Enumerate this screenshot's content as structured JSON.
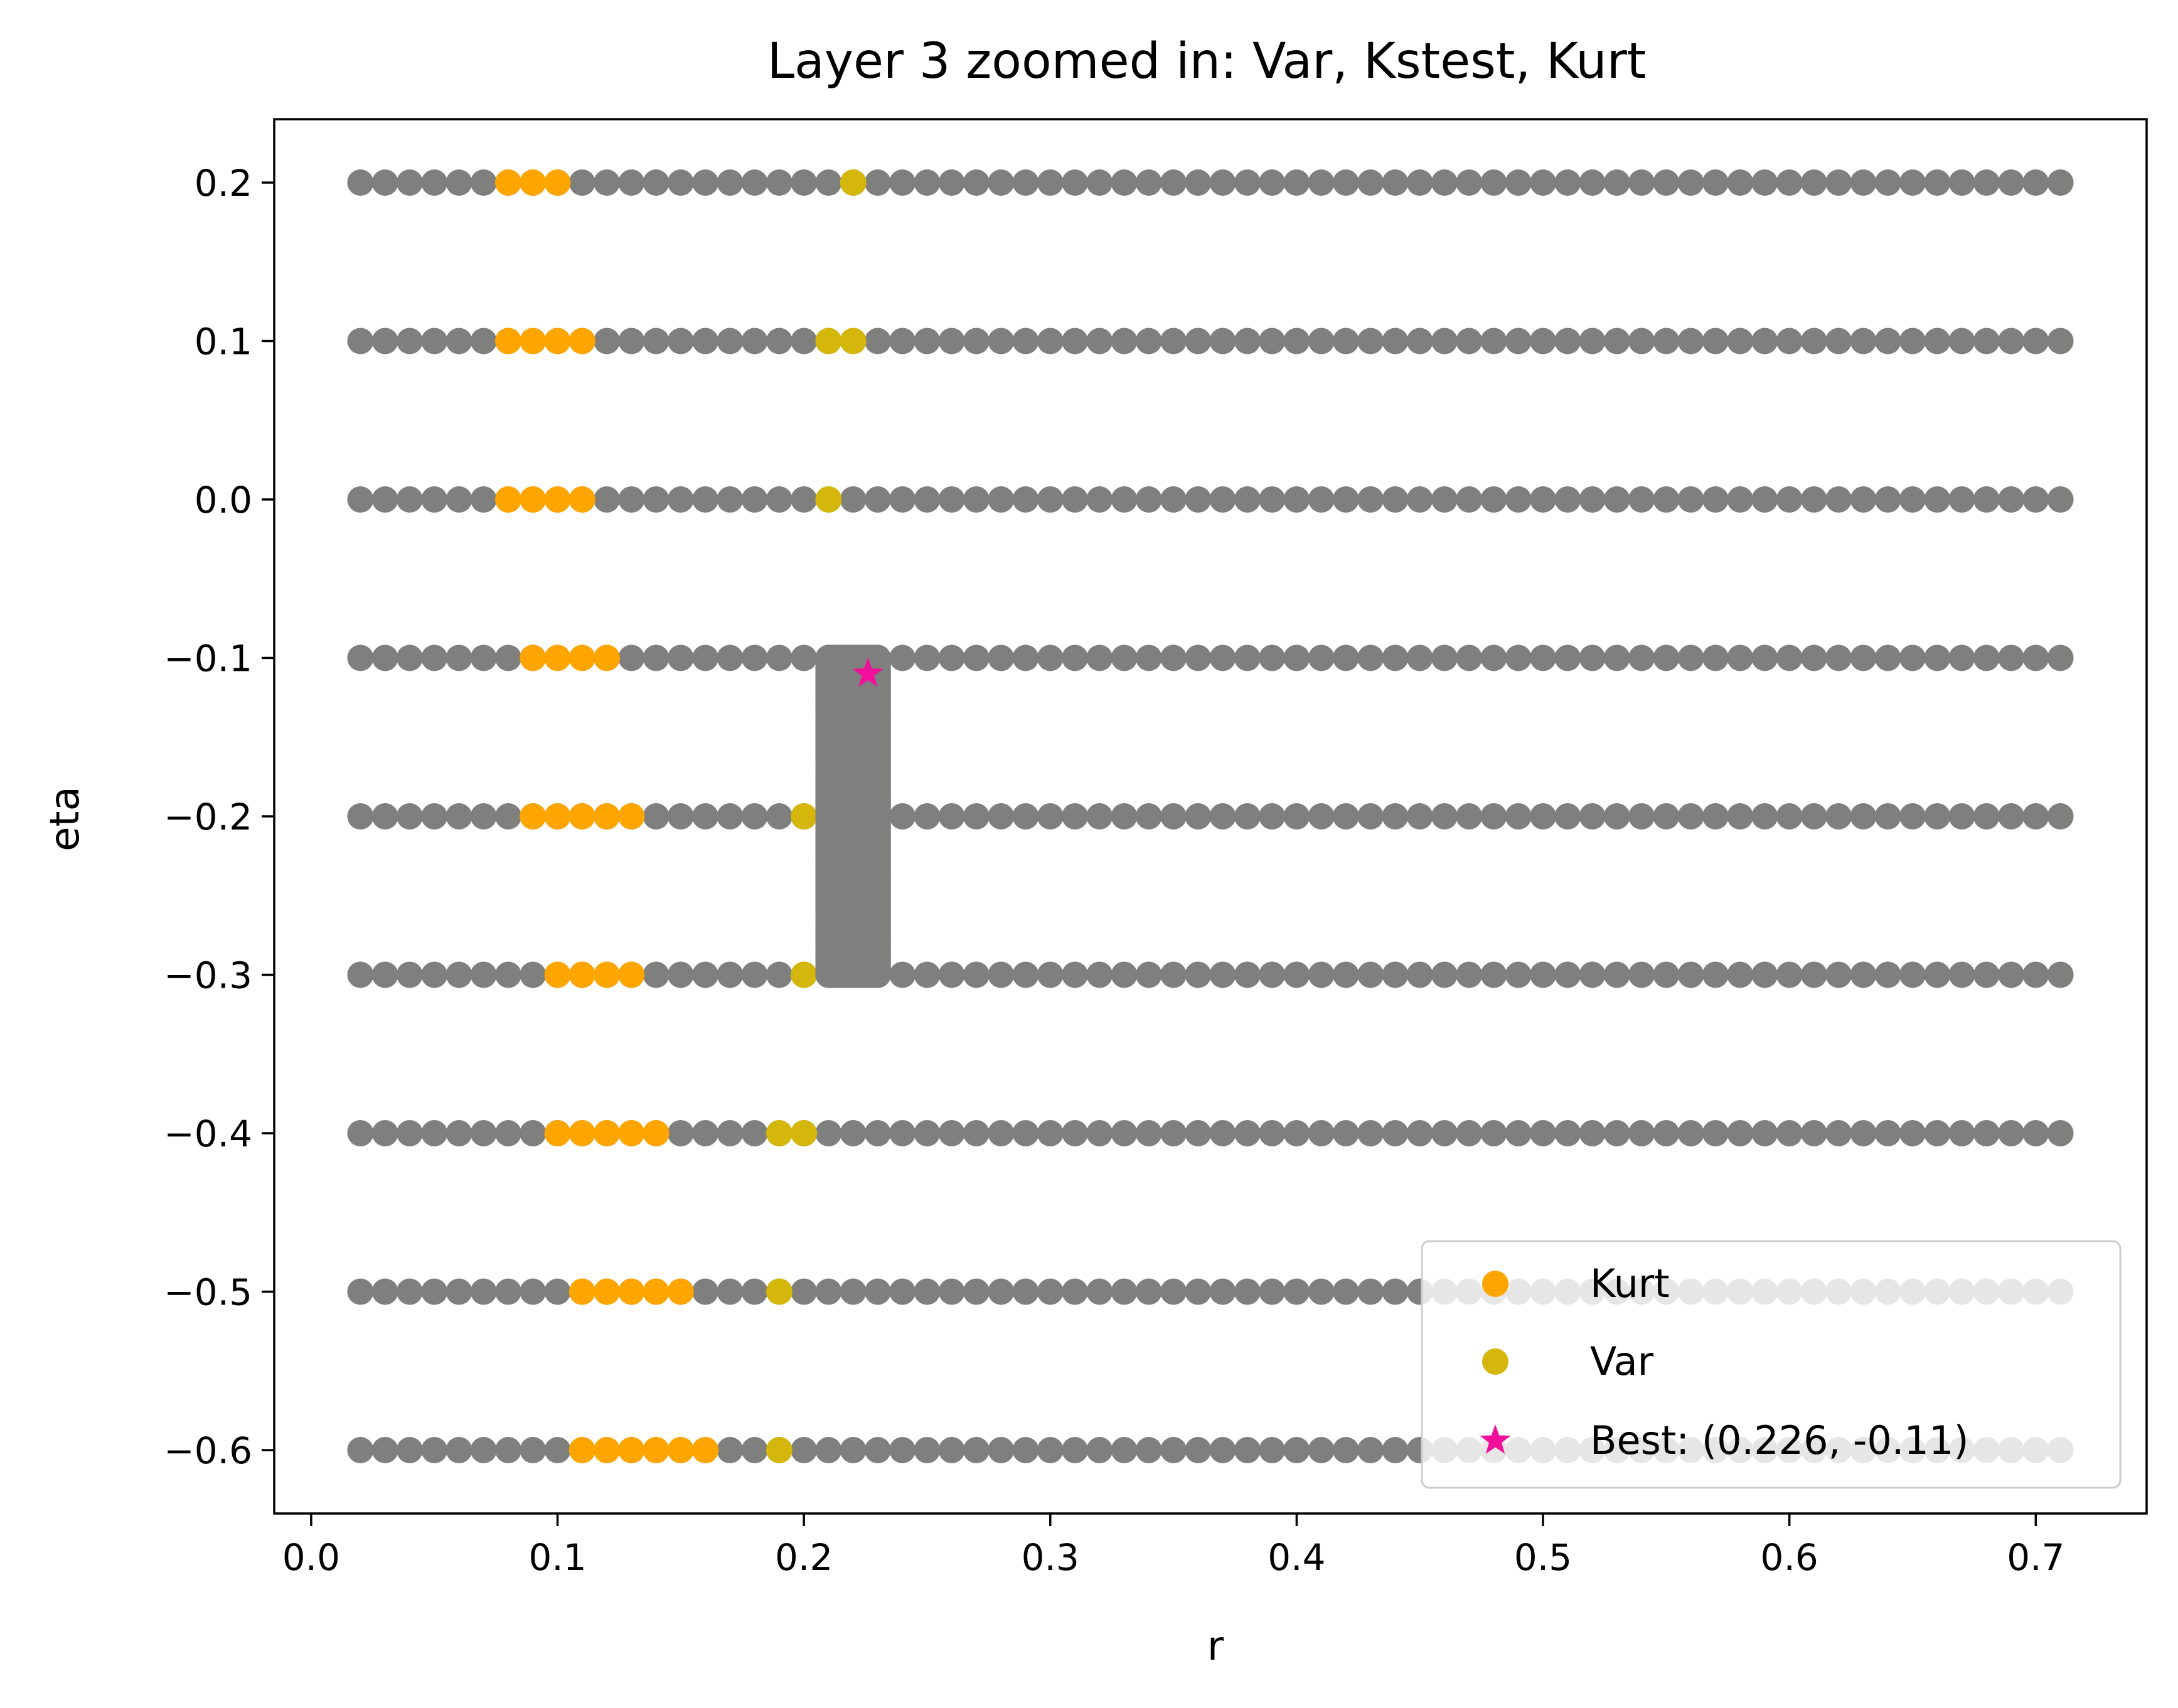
{
  "chart_data": {
    "type": "scatter",
    "title": "Layer 3 zoomed in: Var, Kstest, Kurt",
    "xlabel": "r",
    "ylabel": "eta",
    "xlim": [
      -0.015,
      0.745
    ],
    "ylim": [
      -0.64,
      0.24
    ],
    "x_ticks": [
      0.0,
      0.1,
      0.2,
      0.3,
      0.4,
      0.5,
      0.6,
      0.7
    ],
    "x_tick_labels": [
      "0.0",
      "0.1",
      "0.2",
      "0.3",
      "0.4",
      "0.5",
      "0.6",
      "0.7"
    ],
    "y_ticks": [
      0.2,
      0.1,
      0.0,
      -0.1,
      -0.2,
      -0.3,
      -0.4,
      -0.5,
      -0.6
    ],
    "y_tick_labels": [
      "0.2",
      "0.1",
      "0.0",
      "−0.1",
      "−0.2",
      "−0.3",
      "−0.4",
      "−0.5",
      "−0.6"
    ],
    "grid": false,
    "legend_position": "lower-right",
    "colors": {
      "grid_points": "#7f807e",
      "kurt": "#ffa500",
      "var": "#d4b70a",
      "best": "#f0109a"
    },
    "grid_r": {
      "start": 0.02,
      "step": 0.01,
      "count": 70
    },
    "grid_eta": [
      0.2,
      0.1,
      0.0,
      -0.1,
      -0.2,
      -0.3,
      -0.4,
      -0.5,
      -0.6
    ],
    "zoom_block": {
      "r_min": 0.21,
      "r_max": 0.23,
      "eta_min": -0.3,
      "eta_max": -0.1
    },
    "series": [
      {
        "name": "Kurt",
        "color": "#ffa500",
        "points": [
          [
            0.08,
            0.2
          ],
          [
            0.09,
            0.2
          ],
          [
            0.1,
            0.2
          ],
          [
            0.08,
            0.1
          ],
          [
            0.09,
            0.1
          ],
          [
            0.1,
            0.1
          ],
          [
            0.11,
            0.1
          ],
          [
            0.08,
            0.0
          ],
          [
            0.09,
            0.0
          ],
          [
            0.1,
            0.0
          ],
          [
            0.11,
            0.0
          ],
          [
            0.09,
            -0.1
          ],
          [
            0.1,
            -0.1
          ],
          [
            0.11,
            -0.1
          ],
          [
            0.12,
            -0.1
          ],
          [
            0.09,
            -0.2
          ],
          [
            0.1,
            -0.2
          ],
          [
            0.11,
            -0.2
          ],
          [
            0.12,
            -0.2
          ],
          [
            0.13,
            -0.2
          ],
          [
            0.1,
            -0.3
          ],
          [
            0.11,
            -0.3
          ],
          [
            0.12,
            -0.3
          ],
          [
            0.13,
            -0.3
          ],
          [
            0.1,
            -0.4
          ],
          [
            0.11,
            -0.4
          ],
          [
            0.12,
            -0.4
          ],
          [
            0.13,
            -0.4
          ],
          [
            0.14,
            -0.4
          ],
          [
            0.11,
            -0.5
          ],
          [
            0.12,
            -0.5
          ],
          [
            0.13,
            -0.5
          ],
          [
            0.14,
            -0.5
          ],
          [
            0.15,
            -0.5
          ],
          [
            0.11,
            -0.6
          ],
          [
            0.12,
            -0.6
          ],
          [
            0.13,
            -0.6
          ],
          [
            0.14,
            -0.6
          ],
          [
            0.15,
            -0.6
          ],
          [
            0.16,
            -0.6
          ]
        ]
      },
      {
        "name": "Var",
        "color": "#d4b70a",
        "points": [
          [
            0.22,
            0.2
          ],
          [
            0.21,
            0.1
          ],
          [
            0.22,
            0.1
          ],
          [
            0.21,
            0.0
          ],
          [
            0.21,
            -0.1
          ],
          [
            0.211,
            -0.12
          ],
          [
            0.211,
            -0.14
          ],
          [
            0.21,
            -0.16
          ],
          [
            0.21,
            -0.18
          ],
          [
            0.2,
            -0.2
          ],
          [
            0.2,
            -0.3
          ],
          [
            0.19,
            -0.4
          ],
          [
            0.2,
            -0.4
          ],
          [
            0.19,
            -0.5
          ],
          [
            0.19,
            -0.6
          ]
        ]
      },
      {
        "name": "Best: (0.226, -0.11)",
        "color": "#f0109a",
        "marker": "star",
        "points": [
          [
            0.226,
            -0.11
          ]
        ]
      }
    ]
  }
}
